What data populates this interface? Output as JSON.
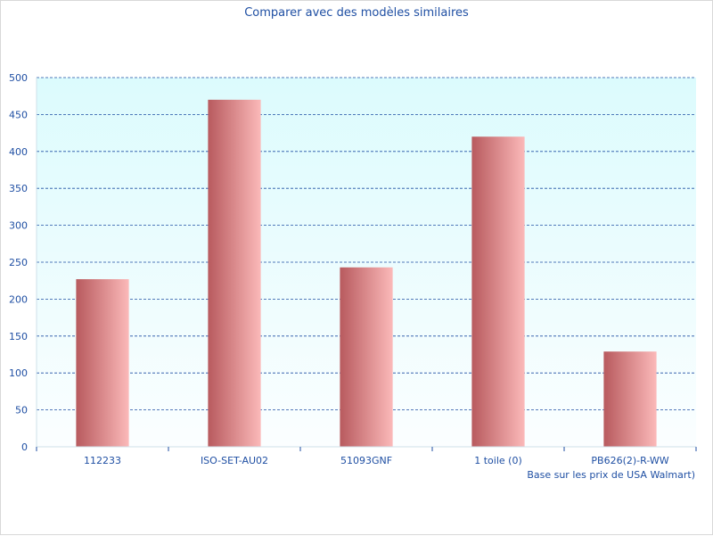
{
  "chart_data": {
    "type": "bar",
    "title": "Comparer avec des modèles similaires",
    "footnote": "Base sur les prix de USA Walmart)",
    "categories": [
      "112233",
      "ISO-SET-AU02",
      "51093GNF",
      "1 toile (0)",
      "PB626(2)-R-WW"
    ],
    "values": [
      227,
      470,
      243,
      420,
      129
    ],
    "ylim": [
      0,
      500
    ],
    "yticks": [
      0,
      50,
      100,
      150,
      200,
      250,
      300,
      350,
      400,
      450,
      500
    ],
    "grid": true,
    "colors": {
      "bar_dark": "#b85a5e",
      "bar_light": "#fbb9b9",
      "plot_bg_top": "#dcfbfd",
      "plot_bg_bottom": "#fbfeff",
      "grid": "#1f4fa3",
      "text": "#1f4fa3"
    }
  }
}
